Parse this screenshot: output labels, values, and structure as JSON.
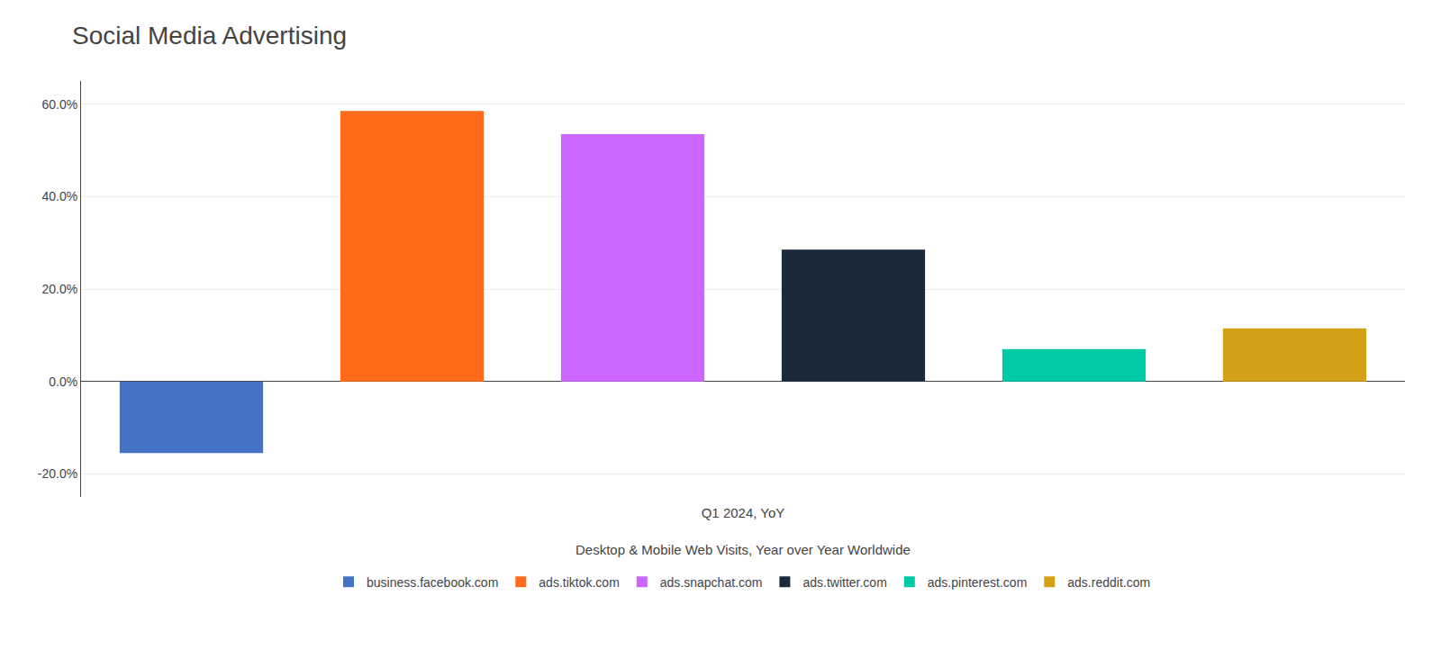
{
  "chart_data": {
    "type": "bar",
    "title": "Social Media Advertising",
    "subtitle": "Desktop & Mobile Web Visits, Year over Year Worldwide",
    "xlabel": "Q1 2024, YoY",
    "categories": [
      "business.facebook.com",
      "ads.tiktok.com",
      "ads.snapchat.com",
      "ads.twitter.com",
      "ads.pinterest.com",
      "ads.reddit.com"
    ],
    "values": [
      -0.155,
      0.585,
      0.535,
      0.285,
      0.07,
      0.115
    ],
    "colors": [
      "#4472C4",
      "#FF6B1A",
      "#CC66FF",
      "#1B2A3B",
      "#00C9A7",
      "#D4A017"
    ],
    "ylim": [
      -0.25,
      0.65
    ],
    "yticks": [
      {
        "value": -0.2,
        "label": "-20.0%"
      },
      {
        "value": 0.0,
        "label": "0.0%"
      },
      {
        "value": 0.2,
        "label": "20.0%"
      },
      {
        "value": 0.4,
        "label": "40.0%"
      },
      {
        "value": 0.6,
        "label": "60.0%"
      }
    ],
    "grid": true,
    "legend": "bottom",
    "tick_labels": "y"
  }
}
